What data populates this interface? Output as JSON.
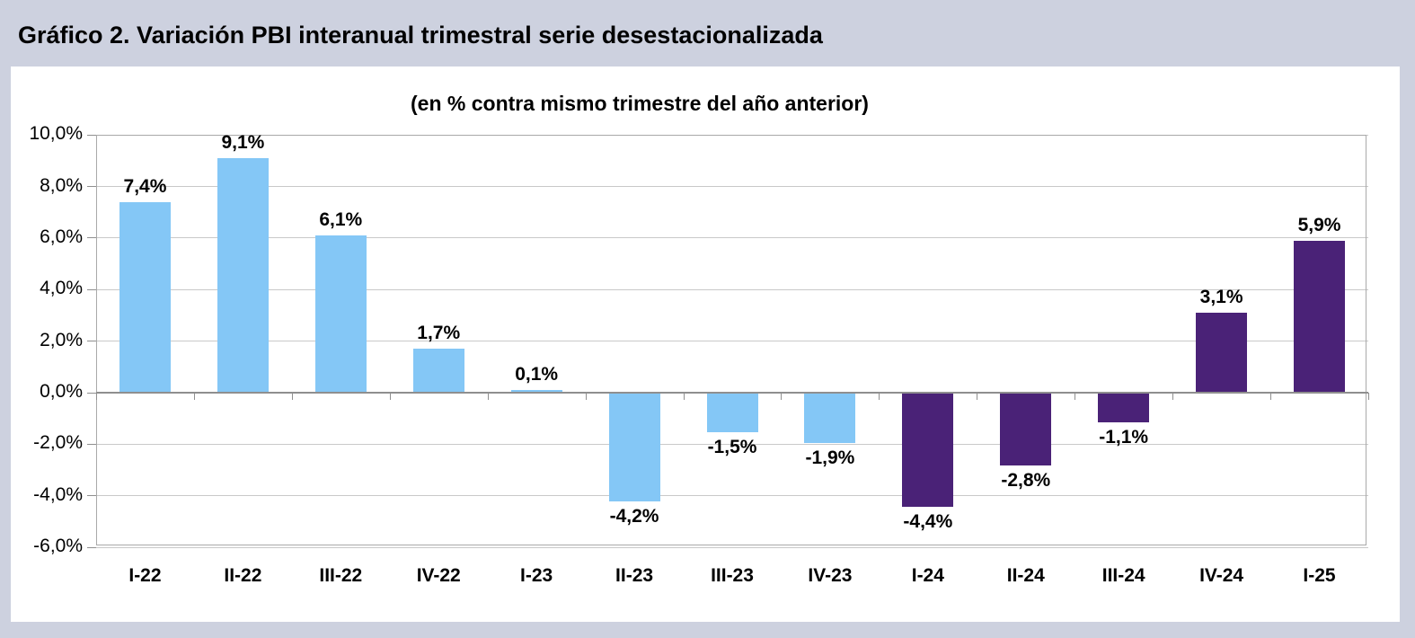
{
  "header": {
    "title": "Gráfico 2. Variación PBI interanual trimestral serie desestacionalizada"
  },
  "chart_data": {
    "type": "bar",
    "title": "Gráfico 2. Variación PBI interanual trimestral serie desestacionalizada",
    "subtitle": "(en % contra mismo trimestre del año anterior)",
    "categories": [
      "I-22",
      "II-22",
      "III-22",
      "IV-22",
      "I-23",
      "II-23",
      "III-23",
      "IV-23",
      "I-24",
      "II-24",
      "III-24",
      "IV-24",
      "I-25"
    ],
    "values": [
      7.4,
      9.1,
      6.1,
      1.7,
      0.1,
      -4.2,
      -1.5,
      -1.9,
      -4.4,
      -2.8,
      -1.1,
      3.1,
      5.9
    ],
    "value_labels": [
      "7,4%",
      "9,1%",
      "6,1%",
      "1,7%",
      "0,1%",
      "-4,2%",
      "-1,5%",
      "-1,9%",
      "-4,4%",
      "-2,8%",
      "-1,1%",
      "3,1%",
      "5,9%"
    ],
    "bar_colors": [
      "#84C7F6",
      "#84C7F6",
      "#84C7F6",
      "#84C7F6",
      "#84C7F6",
      "#84C7F6",
      "#84C7F6",
      "#84C7F6",
      "#4A2277",
      "#4A2277",
      "#4A2277",
      "#4A2277",
      "#4A2277"
    ],
    "y_ticks": {
      "labels": [
        "10,0%",
        "8,0%",
        "6,0%",
        "4,0%",
        "2,0%",
        "0,0%",
        "-2,0%",
        "-4,0%",
        "-6,0%"
      ],
      "values": [
        10,
        8,
        6,
        4,
        2,
        0,
        -2,
        -4,
        -6
      ]
    },
    "ylim": [
      -6,
      10
    ],
    "xlabel": "",
    "ylabel": "",
    "grid": true,
    "legend_position": "none"
  },
  "colors": {
    "page_background": "#CDD1DF",
    "panel_background": "#FFFFFF",
    "gridline": "#C9C9C9",
    "plot_border": "#A9A9A9",
    "zero_axis": "#8F8F8F",
    "bar_blue": "#84C7F6",
    "bar_purple": "#4A2277",
    "text": "#000000"
  }
}
